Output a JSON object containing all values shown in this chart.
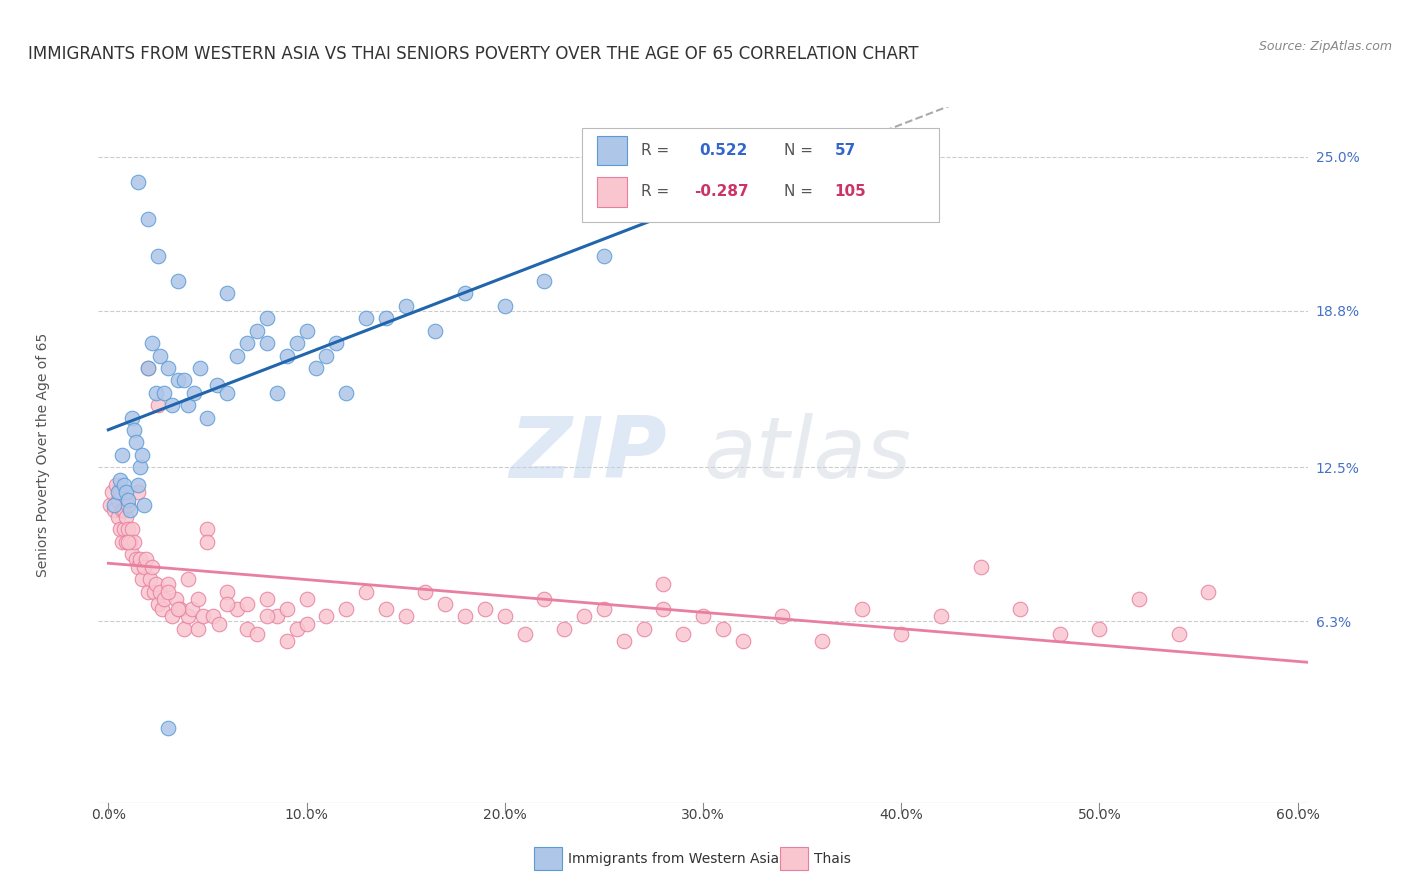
{
  "title": "IMMIGRANTS FROM WESTERN ASIA VS THAI SENIORS POVERTY OVER THE AGE OF 65 CORRELATION CHART",
  "source": "Source: ZipAtlas.com",
  "ylabel": "Seniors Poverty Over the Age of 65",
  "xlabel_ticks": [
    "0.0%",
    "10.0%",
    "20.0%",
    "30.0%",
    "40.0%",
    "50.0%",
    "60.0%"
  ],
  "xlabel_vals": [
    0.0,
    0.1,
    0.2,
    0.3,
    0.4,
    0.5,
    0.6
  ],
  "ylabel_ticks": [
    "25.0%",
    "18.8%",
    "12.5%",
    "6.3%"
  ],
  "ylabel_vals": [
    0.25,
    0.188,
    0.125,
    0.063
  ],
  "xlim": [
    -0.005,
    0.605
  ],
  "ylim": [
    -0.01,
    0.27
  ],
  "blue_color": "#aec6e8",
  "blue_edge": "#5b9bd5",
  "blue_line": "#2166ac",
  "pink_color": "#f9c6cf",
  "pink_edge": "#e87fa0",
  "pink_line": "#e87fa0",
  "dashed_color": "#aaaaaa",
  "legend_blue_r": "0.522",
  "legend_blue_n": "57",
  "legend_pink_r": "-0.287",
  "legend_pink_n": "105",
  "legend_label_blue": "Immigrants from Western Asia",
  "legend_label_pink": "Thais",
  "watermark_zip": "ZIP",
  "watermark_atlas": "atlas",
  "title_fontsize": 12,
  "axis_label_fontsize": 10,
  "tick_fontsize": 10,
  "right_tick_color": "#4472c4",
  "blue_x": [
    0.003,
    0.005,
    0.006,
    0.007,
    0.008,
    0.009,
    0.01,
    0.011,
    0.012,
    0.013,
    0.014,
    0.015,
    0.016,
    0.017,
    0.018,
    0.02,
    0.022,
    0.024,
    0.026,
    0.028,
    0.03,
    0.032,
    0.035,
    0.038,
    0.04,
    0.043,
    0.046,
    0.05,
    0.055,
    0.06,
    0.065,
    0.07,
    0.075,
    0.08,
    0.085,
    0.09,
    0.095,
    0.1,
    0.105,
    0.11,
    0.115,
    0.12,
    0.13,
    0.14,
    0.15,
    0.165,
    0.18,
    0.2,
    0.22,
    0.25,
    0.015,
    0.02,
    0.025,
    0.035,
    0.06,
    0.08,
    0.03
  ],
  "blue_y": [
    0.11,
    0.115,
    0.12,
    0.13,
    0.118,
    0.115,
    0.112,
    0.108,
    0.145,
    0.14,
    0.135,
    0.118,
    0.125,
    0.13,
    0.11,
    0.165,
    0.175,
    0.155,
    0.17,
    0.155,
    0.165,
    0.15,
    0.16,
    0.16,
    0.15,
    0.155,
    0.165,
    0.145,
    0.158,
    0.155,
    0.17,
    0.175,
    0.18,
    0.175,
    0.155,
    0.17,
    0.175,
    0.18,
    0.165,
    0.17,
    0.175,
    0.155,
    0.185,
    0.185,
    0.19,
    0.18,
    0.195,
    0.19,
    0.2,
    0.21,
    0.24,
    0.225,
    0.21,
    0.2,
    0.195,
    0.185,
    0.02
  ],
  "pink_x": [
    0.001,
    0.002,
    0.003,
    0.004,
    0.005,
    0.005,
    0.006,
    0.006,
    0.007,
    0.007,
    0.008,
    0.008,
    0.009,
    0.009,
    0.01,
    0.01,
    0.011,
    0.012,
    0.012,
    0.013,
    0.014,
    0.015,
    0.016,
    0.017,
    0.018,
    0.019,
    0.02,
    0.021,
    0.022,
    0.023,
    0.024,
    0.025,
    0.026,
    0.027,
    0.028,
    0.03,
    0.032,
    0.034,
    0.036,
    0.038,
    0.04,
    0.042,
    0.045,
    0.048,
    0.05,
    0.053,
    0.056,
    0.06,
    0.065,
    0.07,
    0.075,
    0.08,
    0.085,
    0.09,
    0.095,
    0.1,
    0.11,
    0.12,
    0.13,
    0.14,
    0.15,
    0.16,
    0.17,
    0.18,
    0.19,
    0.2,
    0.21,
    0.22,
    0.23,
    0.24,
    0.25,
    0.26,
    0.27,
    0.28,
    0.29,
    0.3,
    0.31,
    0.32,
    0.34,
    0.36,
    0.38,
    0.4,
    0.42,
    0.44,
    0.46,
    0.48,
    0.5,
    0.52,
    0.54,
    0.555,
    0.01,
    0.015,
    0.02,
    0.025,
    0.03,
    0.035,
    0.04,
    0.045,
    0.05,
    0.06,
    0.07,
    0.08,
    0.09,
    0.1,
    0.28
  ],
  "pink_y": [
    0.11,
    0.115,
    0.108,
    0.118,
    0.112,
    0.105,
    0.115,
    0.1,
    0.108,
    0.095,
    0.1,
    0.108,
    0.105,
    0.095,
    0.11,
    0.1,
    0.095,
    0.09,
    0.1,
    0.095,
    0.088,
    0.085,
    0.088,
    0.08,
    0.085,
    0.088,
    0.075,
    0.08,
    0.085,
    0.075,
    0.078,
    0.07,
    0.075,
    0.068,
    0.072,
    0.078,
    0.065,
    0.072,
    0.068,
    0.06,
    0.065,
    0.068,
    0.06,
    0.065,
    0.1,
    0.065,
    0.062,
    0.075,
    0.068,
    0.06,
    0.058,
    0.072,
    0.065,
    0.068,
    0.06,
    0.072,
    0.065,
    0.068,
    0.075,
    0.068,
    0.065,
    0.075,
    0.07,
    0.065,
    0.068,
    0.065,
    0.058,
    0.072,
    0.06,
    0.065,
    0.068,
    0.055,
    0.06,
    0.068,
    0.058,
    0.065,
    0.06,
    0.055,
    0.065,
    0.055,
    0.068,
    0.058,
    0.065,
    0.085,
    0.068,
    0.058,
    0.06,
    0.072,
    0.058,
    0.075,
    0.095,
    0.115,
    0.165,
    0.15,
    0.075,
    0.068,
    0.08,
    0.072,
    0.095,
    0.07,
    0.07,
    0.065,
    0.055,
    0.062,
    0.078
  ]
}
